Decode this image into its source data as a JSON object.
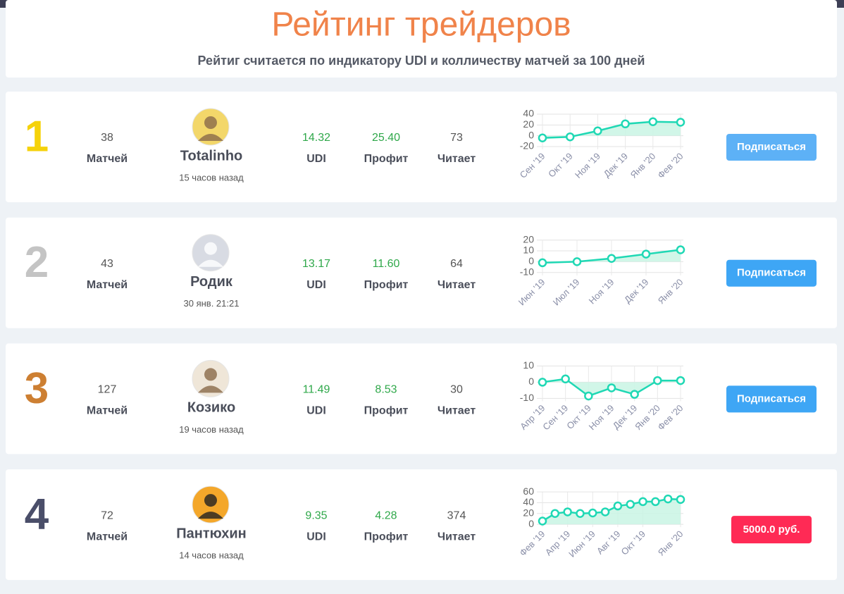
{
  "header": {
    "title": "Рейтинг трейдеров",
    "subtitle": "Рейтиг считается по индикатору UDI и колличеству матчей за 100 дней"
  },
  "traders": [
    {
      "rank": 1,
      "rank_color": "#f5d20a",
      "matches": 38,
      "matches_label": "Матчей",
      "name": "Totalinho",
      "time": "15 часов назад",
      "udi": "14.32",
      "udi_label": "UDI",
      "profit": "25.40",
      "profit_label": "Профит",
      "readers": 73,
      "readers_label": "Читает",
      "button": "Подписаться",
      "button_color": "#5db1f6",
      "chart": {
        "type": "line",
        "color": "#1fd8b4",
        "categories": [
          "Сен '19",
          "Окт '19",
          "Ноя '19",
          "Дек '19",
          "Янв '20",
          "Фев '20"
        ],
        "values": [
          -4,
          -2,
          9,
          22,
          26,
          25
        ],
        "ylim": [
          -20,
          40
        ],
        "yticks": [
          -20,
          0,
          20,
          40
        ],
        "grid": true
      }
    },
    {
      "rank": 2,
      "rank_color": "#c4c4c4",
      "matches": 43,
      "matches_label": "Матчей",
      "name": "Родик",
      "time": "30 янв. 21:21",
      "udi": "13.17",
      "udi_label": "UDI",
      "profit": "11.60",
      "profit_label": "Профит",
      "readers": 64,
      "readers_label": "Читает",
      "button": "Подписаться",
      "button_color": "#3ea6f5",
      "chart": {
        "type": "line",
        "color": "#1fd8b4",
        "categories": [
          "Июн '19",
          "Июл '19",
          "Ноя '19",
          "Дек '19",
          "Янв '20"
        ],
        "values": [
          -1,
          0,
          3,
          7,
          11
        ],
        "ylim": [
          -10,
          20
        ],
        "yticks": [
          -10,
          0,
          10,
          20
        ],
        "grid": true
      }
    },
    {
      "rank": 3,
      "rank_color": "#cd7f32",
      "matches": 127,
      "matches_label": "Матчей",
      "name": "Козико",
      "time": "19 часов назад",
      "udi": "11.49",
      "udi_label": "UDI",
      "profit": "8.53",
      "profit_label": "Профит",
      "readers": 30,
      "readers_label": "Читает",
      "button": "Подписаться",
      "button_color": "#3ea6f5",
      "chart": {
        "type": "line",
        "color": "#1fd8b4",
        "categories": [
          "Апр '19",
          "Сен '19",
          "Окт '19",
          "Ноя '19",
          "Дек '19",
          "Янв '20",
          "Фев '20"
        ],
        "values": [
          0,
          2,
          -8.5,
          -3.5,
          -7.5,
          1,
          1
        ],
        "ylim": [
          -10,
          10
        ],
        "yticks": [
          -10,
          0,
          10
        ],
        "grid": true
      }
    },
    {
      "rank": 4,
      "rank_color": "#4a4e69",
      "matches": 72,
      "matches_label": "Матчей",
      "name": "Пантюхин",
      "time": "14 часов назад",
      "udi": "9.35",
      "udi_label": "UDI",
      "profit": "4.28",
      "profit_label": "Профит",
      "readers": 374,
      "readers_label": "Читает",
      "button": "5000.0 руб.",
      "button_color": "#ff2a55",
      "chart": {
        "type": "line",
        "color": "#1fd8b4",
        "categories": [
          "Фев '19",
          null,
          "Апр '19",
          null,
          "Июн '19",
          null,
          "Авг '19",
          null,
          "Окт '19",
          null,
          null,
          "Янв '20"
        ],
        "values": [
          6,
          20,
          23,
          20,
          21,
          23,
          34,
          37,
          42,
          42,
          47,
          46
        ],
        "ylim": [
          0,
          60
        ],
        "yticks": [
          0,
          20,
          40,
          60
        ],
        "grid": true
      }
    }
  ]
}
